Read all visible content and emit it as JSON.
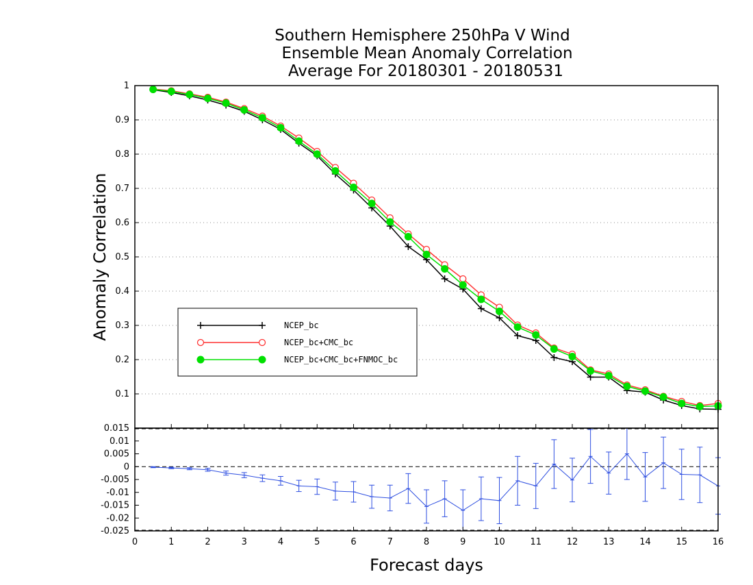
{
  "chart_data": [
    {
      "type": "line",
      "title_lines": [
        "Southern Hemisphere 250hPa V Wind",
        "Ensemble Mean Anomaly Correlation",
        "Average For 20180301 - 20180531"
      ],
      "ylabel": "Anomaly Correlation",
      "xlim": [
        0,
        16
      ],
      "ylim": [
        0,
        1
      ],
      "yticks": [
        "0.1",
        "0.2",
        "0.3",
        "0.4",
        "0.5",
        "0.6",
        "0.7",
        "0.8",
        "0.9",
        "1"
      ],
      "grid": "horizontal-dotted",
      "legend_position": "center-left",
      "x": [
        0.5,
        1,
        1.5,
        2,
        2.5,
        3,
        3.5,
        4,
        4.5,
        5,
        5.5,
        6,
        6.5,
        7,
        7.5,
        8,
        8.5,
        9,
        9.5,
        10,
        10.5,
        11,
        11.5,
        12,
        12.5,
        13,
        13.5,
        14,
        14.5,
        15,
        15.5,
        16
      ],
      "series": [
        {
          "name": "NCEP_bc",
          "color": "#000000",
          "marker": "plus",
          "values": [
            0.988,
            0.98,
            0.97,
            0.958,
            0.943,
            0.925,
            0.9,
            0.872,
            0.832,
            0.795,
            0.742,
            0.695,
            0.643,
            0.59,
            0.53,
            0.492,
            0.436,
            0.406,
            0.349,
            0.322,
            0.27,
            0.256,
            0.206,
            0.194,
            0.149,
            0.149,
            0.11,
            0.105,
            0.082,
            0.066,
            0.056,
            0.055
          ]
        },
        {
          "name": "NCEP_bc+CMC_bc",
          "color": "#ff3333",
          "marker": "open-circle",
          "values": [
            0.99,
            0.985,
            0.976,
            0.966,
            0.952,
            0.933,
            0.911,
            0.882,
            0.847,
            0.808,
            0.761,
            0.715,
            0.666,
            0.614,
            0.567,
            0.522,
            0.477,
            0.436,
            0.389,
            0.353,
            0.301,
            0.278,
            0.234,
            0.216,
            0.17,
            0.158,
            0.126,
            0.112,
            0.093,
            0.078,
            0.066,
            0.072
          ]
        },
        {
          "name": "NCEP_bc+CMC_bc+FNMOC_bc",
          "color": "#00e000",
          "marker": "filled-circle",
          "values": [
            0.989,
            0.983,
            0.974,
            0.963,
            0.949,
            0.929,
            0.906,
            0.877,
            0.838,
            0.8,
            0.751,
            0.703,
            0.656,
            0.602,
            0.559,
            0.507,
            0.465,
            0.418,
            0.376,
            0.341,
            0.295,
            0.272,
            0.231,
            0.209,
            0.167,
            0.153,
            0.122,
            0.108,
            0.091,
            0.072,
            0.063,
            0.065
          ]
        }
      ]
    },
    {
      "type": "line",
      "xlabel": "Forecast days",
      "xlim": [
        0,
        16
      ],
      "ylim": [
        -0.025,
        0.015
      ],
      "xticks": [
        "0",
        "1",
        "2",
        "3",
        "4",
        "5",
        "6",
        "7",
        "8",
        "9",
        "10",
        "11",
        "12",
        "13",
        "14",
        "15",
        "16"
      ],
      "yticks": [
        "-0.025",
        "-0.02",
        "-0.015",
        "-0.01",
        "-0.005",
        "0",
        "0.005",
        "0.01",
        "0.015"
      ],
      "reference_line": 0,
      "series": [
        {
          "name": "",
          "color": "#2d4ee0",
          "marker": "error-bar",
          "x": [
            0.5,
            1,
            1.5,
            2,
            2.5,
            3,
            3.5,
            4,
            4.5,
            5,
            5.5,
            6,
            6.5,
            7,
            7.5,
            8,
            8.5,
            9,
            9.5,
            10,
            10.5,
            11,
            11.5,
            12,
            12.5,
            13,
            13.5,
            14,
            14.5,
            15,
            15.5,
            16
          ],
          "values": [
            -0.0002,
            -0.0005,
            -0.0008,
            -0.0012,
            -0.0025,
            -0.0033,
            -0.0045,
            -0.0055,
            -0.0075,
            -0.0078,
            -0.0095,
            -0.0098,
            -0.0117,
            -0.0122,
            -0.0085,
            -0.0155,
            -0.0125,
            -0.017,
            -0.0125,
            -0.0132,
            -0.0055,
            -0.0075,
            0.001,
            -0.0052,
            0.004,
            -0.0025,
            0.005,
            -0.004,
            0.0015,
            -0.003,
            -0.0032,
            -0.0075
          ],
          "error": [
            0.0002,
            0.0003,
            0.0004,
            0.0006,
            0.0008,
            0.001,
            0.0013,
            0.0017,
            0.0022,
            0.003,
            0.0035,
            0.004,
            0.0045,
            0.005,
            0.0058,
            0.0065,
            0.007,
            0.008,
            0.0085,
            0.009,
            0.0095,
            0.0088,
            0.0095,
            0.0085,
            0.0105,
            0.0082,
            0.01,
            0.0095,
            0.01,
            0.0098,
            0.0108,
            0.011
          ]
        }
      ]
    }
  ]
}
